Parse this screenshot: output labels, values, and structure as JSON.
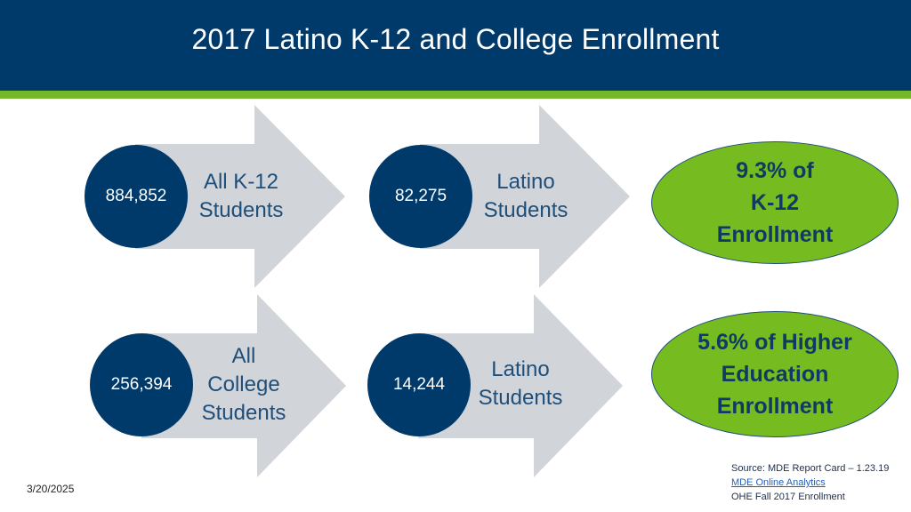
{
  "header": {
    "title": "2017 Latino K-12 and College Enrollment"
  },
  "k12": {
    "all": {
      "value": "884,852",
      "label_line1": "All K-12",
      "label_line2": "Students"
    },
    "latino": {
      "value": "82,275",
      "label_line1": "Latino",
      "label_line2": "Students"
    },
    "result": {
      "line1": "9.3% of",
      "line2": "K-12",
      "line3": "Enrollment"
    }
  },
  "college": {
    "all": {
      "value": "256,394",
      "label_line1": "All",
      "label_line2": "College",
      "label_line3": "Students"
    },
    "latino": {
      "value": "14,244",
      "label_line1": "Latino",
      "label_line2": "Students"
    },
    "result": {
      "line1": "5.6% of Higher",
      "line2": "Education",
      "line3": "Enrollment"
    }
  },
  "footer": {
    "date": "3/20/2025",
    "source_line1": "Source: MDE Report Card – 1.23.19",
    "source_link": "MDE Online Analytics",
    "source_line3": "OHE Fall 2017 Enrollment"
  },
  "colors": {
    "navy": "#003a6b",
    "green": "#76b82a",
    "arrow_gray": "#d1d5da"
  }
}
